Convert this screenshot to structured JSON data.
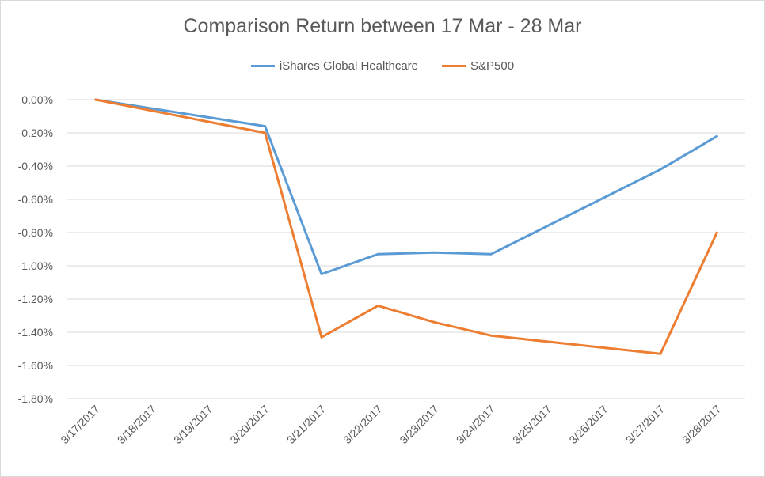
{
  "chart_data": {
    "type": "line",
    "title": "Comparison Return between 17 Mar - 28 Mar",
    "xlabel": "",
    "ylabel": "",
    "categories": [
      "3/17/2017",
      "3/18/2017",
      "3/19/2017",
      "3/20/2017",
      "3/21/2017",
      "3/22/2017",
      "3/23/2017",
      "3/24/2017",
      "3/25/2017",
      "3/26/2017",
      "3/27/2017",
      "3/28/2017"
    ],
    "y_ticks": [
      "0.00%",
      "-0.20%",
      "-0.40%",
      "-0.60%",
      "-0.80%",
      "-1.00%",
      "-1.20%",
      "-1.40%",
      "-1.60%",
      "-1.80%"
    ],
    "ylim": [
      -1.8,
      0.0
    ],
    "grid": true,
    "legend_position": "top",
    "series": [
      {
        "name": "iShares Global Healthcare",
        "color": "#5B9BD5",
        "points": [
          [
            0,
            0.0
          ],
          [
            3,
            -0.16
          ],
          [
            4,
            -1.05
          ],
          [
            5,
            -0.93
          ],
          [
            6,
            -0.92
          ],
          [
            7,
            -0.93
          ],
          [
            10,
            -0.42
          ],
          [
            11,
            -0.22
          ]
        ]
      },
      {
        "name": "S&P500",
        "color": "#ED7D31",
        "points": [
          [
            0,
            0.0
          ],
          [
            3,
            -0.2
          ],
          [
            4,
            -1.43
          ],
          [
            5,
            -1.24
          ],
          [
            6,
            -1.34
          ],
          [
            7,
            -1.42
          ],
          [
            10,
            -1.53
          ],
          [
            11,
            -0.8
          ]
        ]
      }
    ]
  }
}
